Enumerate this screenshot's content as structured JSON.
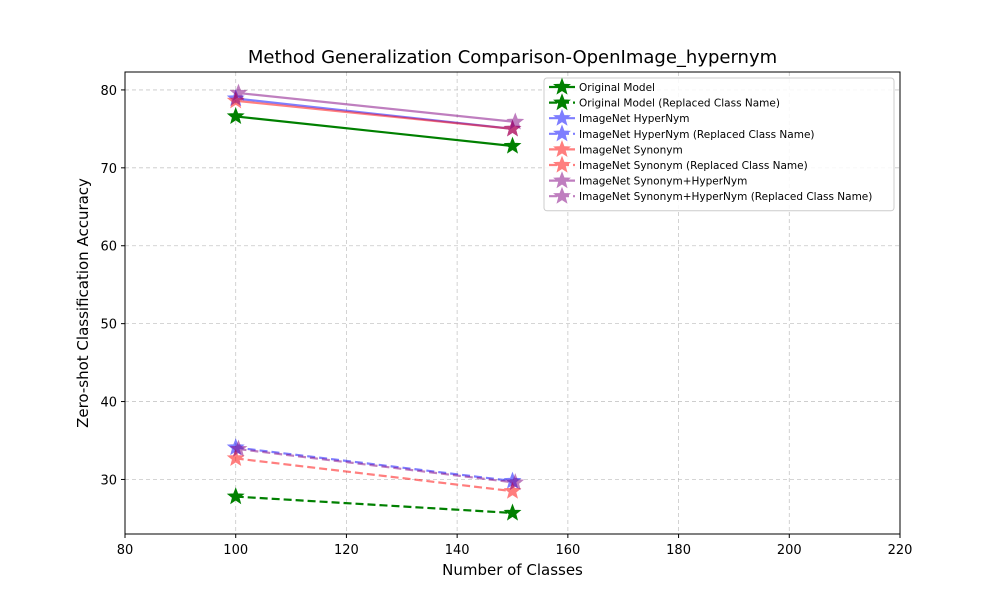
{
  "chart_data": {
    "type": "line",
    "title": "Method Generalization Comparison-OpenImage_hypernym",
    "xlabel": "Number of Classes",
    "ylabel": "Zero-shot Classification Accuracy",
    "xlim": [
      80,
      220
    ],
    "ylim": [
      23,
      82.3
    ],
    "xticks": [
      80,
      100,
      120,
      140,
      160,
      180,
      200,
      220
    ],
    "yticks": [
      30,
      40,
      50,
      60,
      70,
      80
    ],
    "grid": true,
    "legend_position": "top-right",
    "series": [
      {
        "name": "Original Model",
        "x": [
          100,
          150
        ],
        "y": [
          76.6,
          72.8
        ],
        "color": "#008000",
        "dashed": false,
        "alpha": 1.0
      },
      {
        "name": "Original Model (Replaced Class Name)",
        "x": [
          100,
          150
        ],
        "y": [
          27.8,
          25.7
        ],
        "color": "#008000",
        "dashed": true,
        "alpha": 1.0
      },
      {
        "name": "ImageNet HyperNym",
        "x": [
          100,
          150
        ],
        "y": [
          78.9,
          75.0
        ],
        "color": "#0000ff",
        "dashed": false,
        "alpha": 0.5
      },
      {
        "name": "ImageNet HyperNym (Replaced Class Name)",
        "x": [
          100,
          150
        ],
        "y": [
          34.1,
          29.8
        ],
        "color": "#0000ff",
        "dashed": true,
        "alpha": 0.5
      },
      {
        "name": "ImageNet Synonym",
        "x": [
          100,
          150
        ],
        "y": [
          78.6,
          75.0
        ],
        "color": "#ff0000",
        "dashed": false,
        "alpha": 0.5
      },
      {
        "name": "ImageNet Synonym (Replaced Class Name)",
        "x": [
          100,
          150
        ],
        "y": [
          32.7,
          28.5
        ],
        "color": "#ff0000",
        "dashed": true,
        "alpha": 0.5
      },
      {
        "name": "ImageNet Synonym+HyperNym",
        "x": [
          100.5,
          150.5
        ],
        "y": [
          79.6,
          75.9
        ],
        "color": "#800080",
        "dashed": false,
        "alpha": 0.5
      },
      {
        "name": "ImageNet Synonym+HyperNym (Replaced Class Name)",
        "x": [
          100.5,
          150.5
        ],
        "y": [
          33.9,
          29.6
        ],
        "color": "#800080",
        "dashed": true,
        "alpha": 0.5
      }
    ]
  }
}
